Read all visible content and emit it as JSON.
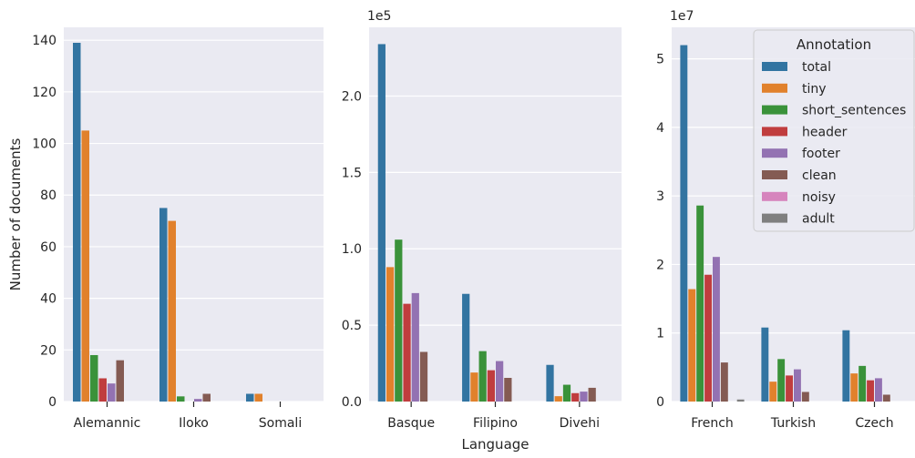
{
  "colors": {
    "total": "#3274a1",
    "tiny": "#e1812c",
    "short_sentences": "#3a923a",
    "header": "#c03d3e",
    "footer": "#9372b2",
    "clean": "#845b53",
    "noisy": "#d684bd",
    "adult": "#7f7f7f",
    "panel_bg": "#eaeaf2",
    "grid": "#ffffff"
  },
  "chart_data": [
    {
      "type": "bar",
      "categories": [
        "Alemannic",
        "Iloko",
        "Somali"
      ],
      "series": [
        {
          "name": "total",
          "values": [
            139,
            75,
            3
          ]
        },
        {
          "name": "tiny",
          "values": [
            105,
            70,
            3
          ]
        },
        {
          "name": "short_sentences",
          "values": [
            18,
            2,
            0
          ]
        },
        {
          "name": "header",
          "values": [
            9,
            0,
            0
          ]
        },
        {
          "name": "footer",
          "values": [
            7,
            1,
            0
          ]
        },
        {
          "name": "clean",
          "values": [
            16,
            3,
            0
          ]
        },
        {
          "name": "noisy",
          "values": [
            0,
            0,
            0
          ]
        },
        {
          "name": "adult",
          "values": [
            0,
            0,
            0
          ]
        }
      ],
      "ylabel": "Number of documents",
      "xlabel": "",
      "ylim": [
        0,
        145
      ],
      "yticks": [
        0,
        20,
        40,
        60,
        80,
        100,
        120,
        140
      ],
      "ytick_labels": [
        "0",
        "20",
        "40",
        "60",
        "80",
        "100",
        "120",
        "140"
      ],
      "offset_text": "",
      "grid": true
    },
    {
      "type": "bar",
      "categories": [
        "Basque",
        "Filipino",
        "Divehi"
      ],
      "series": [
        {
          "name": "total",
          "values": [
            234000,
            70500,
            24000
          ]
        },
        {
          "name": "tiny",
          "values": [
            88000,
            19000,
            3500
          ]
        },
        {
          "name": "short_sentences",
          "values": [
            106000,
            33000,
            11000
          ]
        },
        {
          "name": "header",
          "values": [
            64000,
            20500,
            5500
          ]
        },
        {
          "name": "footer",
          "values": [
            71000,
            26500,
            6500
          ]
        },
        {
          "name": "clean",
          "values": [
            32500,
            15500,
            9000
          ]
        },
        {
          "name": "noisy",
          "values": [
            0,
            0,
            0
          ]
        },
        {
          "name": "adult",
          "values": [
            0,
            0,
            0
          ]
        }
      ],
      "ylabel": "",
      "xlabel": "Language",
      "ylim": [
        0,
        245000
      ],
      "yticks": [
        0,
        50000,
        100000,
        150000,
        200000
      ],
      "ytick_labels": [
        "0.0",
        "0.5",
        "1.0",
        "1.5",
        "2.0"
      ],
      "offset_text": "1e5",
      "grid": true
    },
    {
      "type": "bar",
      "categories": [
        "French",
        "Turkish",
        "Czech"
      ],
      "series": [
        {
          "name": "total",
          "values": [
            52000000,
            10800000,
            10400000
          ]
        },
        {
          "name": "tiny",
          "values": [
            16400000,
            2900000,
            4100000
          ]
        },
        {
          "name": "short_sentences",
          "values": [
            28600000,
            6200000,
            5200000
          ]
        },
        {
          "name": "header",
          "values": [
            18500000,
            3800000,
            3100000
          ]
        },
        {
          "name": "footer",
          "values": [
            21100000,
            4700000,
            3400000
          ]
        },
        {
          "name": "clean",
          "values": [
            5700000,
            1400000,
            1000000
          ]
        },
        {
          "name": "noisy",
          "values": [
            0,
            0,
            0
          ]
        },
        {
          "name": "adult",
          "values": [
            300000,
            0,
            0
          ]
        }
      ],
      "ylabel": "",
      "xlabel": "",
      "ylim": [
        0,
        54600000
      ],
      "yticks": [
        0,
        10000000,
        20000000,
        30000000,
        40000000,
        50000000
      ],
      "ytick_labels": [
        "0",
        "1",
        "2",
        "3",
        "4",
        "5"
      ],
      "offset_text": "1e7",
      "grid": true,
      "legend": {
        "title": "Annotation",
        "position": "top-right",
        "entries": [
          "total",
          "tiny",
          "short_sentences",
          "header",
          "footer",
          "clean",
          "noisy",
          "adult"
        ]
      }
    }
  ]
}
